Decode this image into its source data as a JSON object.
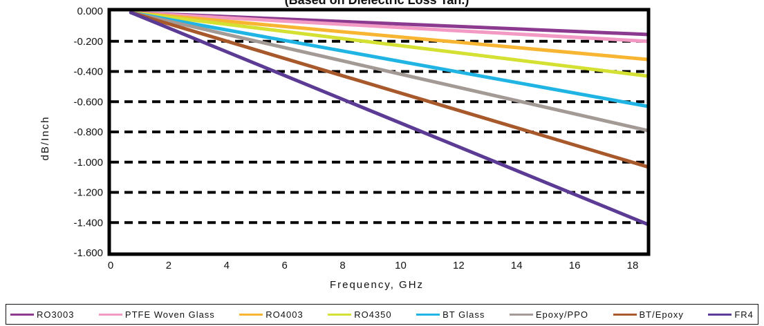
{
  "chart_data": {
    "type": "line",
    "title": "(Based on Dielectric Loss Tan.)",
    "xlabel": "Frequency, GHz",
    "ylabel": "dB/Inch",
    "xlim": [
      0,
      18.5
    ],
    "ylim": [
      -1.6,
      0.0
    ],
    "x_ticks": [
      "0",
      "2",
      "4",
      "6",
      "8",
      "10",
      "12",
      "14",
      "16",
      "18"
    ],
    "y_ticks": [
      "0.000",
      "-0.200",
      "-0.400",
      "-0.600",
      "-0.800",
      "-1.000",
      "-1.200",
      "-1.400",
      "-1.600"
    ],
    "grid": "horizontal dashed",
    "legend_position": "bottom",
    "series": [
      {
        "name": "RO3003",
        "color": "#8B3A8F",
        "x": [
          0.7,
          18.5
        ],
        "y": [
          -0.01,
          -0.155
        ]
      },
      {
        "name": "PTFE Woven Glass",
        "color": "#F29AC3",
        "x": [
          0.7,
          18.5
        ],
        "y": [
          -0.01,
          -0.2
        ]
      },
      {
        "name": "RO4003",
        "color": "#F7B531",
        "x": [
          0.7,
          18.5
        ],
        "y": [
          -0.01,
          -0.32
        ]
      },
      {
        "name": "RO4350",
        "color": "#D4E032",
        "x": [
          0.7,
          18.5
        ],
        "y": [
          -0.01,
          -0.43
        ]
      },
      {
        "name": "BT Glass",
        "color": "#1FB4E3",
        "x": [
          0.7,
          18.5
        ],
        "y": [
          -0.01,
          -0.63
        ]
      },
      {
        "name": "Epoxy/PPO",
        "color": "#A39A96",
        "x": [
          0.7,
          18.5
        ],
        "y": [
          -0.01,
          -0.79
        ]
      },
      {
        "name": "BT/Epoxy",
        "color": "#A8592C",
        "x": [
          0.7,
          18.5
        ],
        "y": [
          -0.01,
          -1.03
        ]
      },
      {
        "name": "FR4",
        "color": "#5B3B93",
        "x": [
          0.7,
          18.5
        ],
        "y": [
          -0.01,
          -1.41
        ]
      }
    ]
  }
}
